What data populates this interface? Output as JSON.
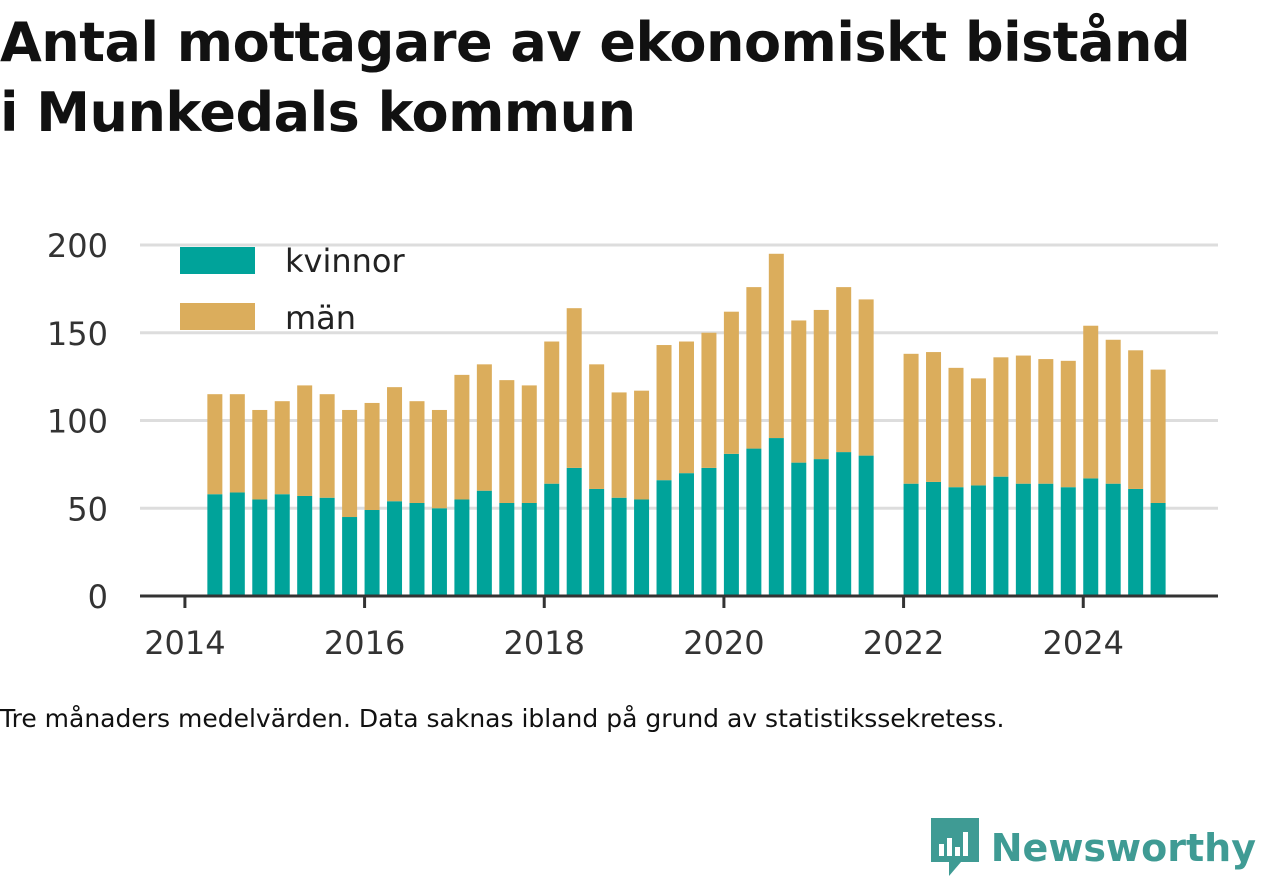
{
  "title_lines": [
    "Antal mottagare av ekonomiskt bistånd",
    "i Munkedals kommun"
  ],
  "note": "Tre månaders medelvärden. Data saknas ibland på grund av statistikssekretess.",
  "brand": {
    "name": "Newsworthy"
  },
  "colors": {
    "kvinnor": "#00a39a",
    "man": "#dbad5c",
    "grid": "#dddddd",
    "axis": "#333333",
    "brand": "#3f9b94"
  },
  "chart_data": {
    "type": "bar",
    "stacked": true,
    "x_ticks": [
      "2014",
      "2016",
      "2018",
      "2020",
      "2022",
      "2024"
    ],
    "y_ticks": [
      "0",
      "50",
      "100",
      "150",
      "200"
    ],
    "ylim": [
      0,
      200
    ],
    "xlim": [
      "2013-07",
      "2025-08"
    ],
    "grid": true,
    "legend_position": "top-left",
    "x": [
      "2014-05",
      "2014-08",
      "2014-11",
      "2015-02",
      "2015-05",
      "2015-08",
      "2015-11",
      "2016-02",
      "2016-05",
      "2016-08",
      "2016-11",
      "2017-02",
      "2017-05",
      "2017-08",
      "2017-11",
      "2018-02",
      "2018-05",
      "2018-08",
      "2018-11",
      "2019-02",
      "2019-05",
      "2019-08",
      "2019-11",
      "2020-02",
      "2020-05",
      "2020-08",
      "2020-11",
      "2021-02",
      "2021-05",
      "2021-08",
      "2022-02",
      "2022-05",
      "2022-08",
      "2022-11",
      "2023-02",
      "2023-05",
      "2023-08",
      "2023-11",
      "2024-02",
      "2024-05",
      "2024-08",
      "2024-11"
    ],
    "series": [
      {
        "name": "kvinnor",
        "values": [
          58,
          59,
          55,
          58,
          57,
          56,
          45,
          49,
          54,
          53,
          50,
          55,
          60,
          53,
          53,
          64,
          73,
          61,
          56,
          55,
          66,
          70,
          73,
          81,
          84,
          90,
          76,
          78,
          82,
          80,
          64,
          65,
          62,
          63,
          68,
          64,
          64,
          62,
          67,
          64,
          61,
          53
        ]
      },
      {
        "name": "män",
        "values": [
          57,
          56,
          51,
          53,
          63,
          59,
          61,
          61,
          65,
          58,
          56,
          71,
          72,
          70,
          67,
          81,
          91,
          71,
          60,
          62,
          77,
          75,
          77,
          81,
          92,
          105,
          81,
          85,
          94,
          89,
          74,
          74,
          68,
          61,
          68,
          73,
          71,
          72,
          87,
          82,
          79,
          76
        ]
      }
    ]
  }
}
